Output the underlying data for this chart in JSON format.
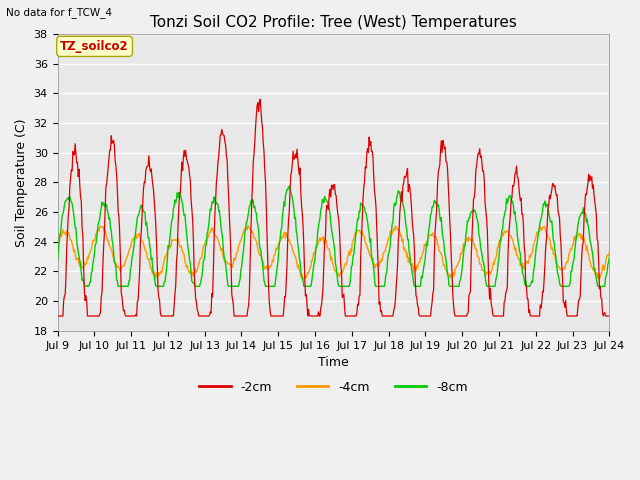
{
  "title": "Tonzi Soil CO2 Profile: Tree (West) Temperatures",
  "no_data_label": "No data for f_TCW_4",
  "subplot_label": "TZ_soilco2",
  "xlabel": "Time",
  "ylabel": "Soil Temperature (C)",
  "ylim": [
    18,
    38
  ],
  "yticks": [
    18,
    20,
    22,
    24,
    26,
    28,
    30,
    32,
    34,
    36,
    38
  ],
  "xticklabels": [
    "Jul 9",
    "Jul 10",
    "Jul 11",
    "Jul 12",
    "Jul 13",
    "Jul 14",
    "Jul 15",
    "Jul 16",
    "Jul 17",
    "Jul 18",
    "Jul 19",
    "Jul 20",
    "Jul 21",
    "Jul 22",
    "Jul 23",
    "Jul 24"
  ],
  "colors": {
    "2cm": "#dd0000",
    "4cm": "#ff9900",
    "8cm": "#00cc00",
    "plot_bg": "#e8e8e8"
  },
  "legend_entries": [
    "-2cm",
    "-4cm",
    "-8cm"
  ],
  "title_fontsize": 11,
  "axis_label_fontsize": 9,
  "tick_fontsize": 8,
  "n_days": 15,
  "n_pts_per_day": 48
}
